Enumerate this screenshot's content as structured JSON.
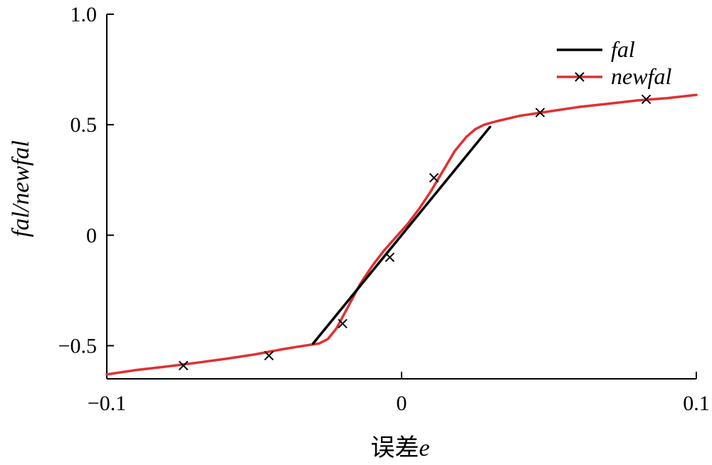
{
  "chart_data": {
    "type": "line",
    "xlabel": "误差",
    "xlabel_var": "e",
    "ylabel": "fal/newfal",
    "xlim": [
      -0.1,
      0.1
    ],
    "ylim": [
      -0.65,
      1.0
    ],
    "x_ticks": [
      -0.1,
      0,
      0.1
    ],
    "x_tick_labels": [
      "−0.1",
      "0",
      "0.1"
    ],
    "y_ticks": [
      -0.5,
      0,
      0.5,
      1.0
    ],
    "y_tick_labels": [
      "−0.5",
      "0",
      "0.5",
      "1.0"
    ],
    "grid": false,
    "legend_position": "top-right",
    "series": [
      {
        "name": "fal",
        "color": "#000000",
        "marker": "none",
        "x": [
          -0.03,
          0.03
        ],
        "y": [
          -0.49,
          0.49
        ]
      },
      {
        "name": "newfal",
        "color": "#e03030",
        "marker": "x",
        "x": [
          -0.1,
          -0.09,
          -0.08,
          -0.07,
          -0.06,
          -0.05,
          -0.04,
          -0.032,
          -0.028,
          -0.025,
          -0.022,
          -0.018,
          -0.014,
          -0.01,
          -0.006,
          -0.002,
          0.002,
          0.006,
          0.01,
          0.014,
          0.018,
          0.022,
          0.025,
          0.028,
          0.032,
          0.04,
          0.05,
          0.06,
          0.07,
          0.08,
          0.09,
          0.1
        ],
        "y": [
          -0.63,
          -0.61,
          -0.595,
          -0.578,
          -0.56,
          -0.54,
          -0.515,
          -0.498,
          -0.49,
          -0.47,
          -0.42,
          -0.32,
          -0.22,
          -0.14,
          -0.07,
          -0.01,
          0.05,
          0.12,
          0.2,
          0.29,
          0.38,
          0.445,
          0.48,
          0.5,
          0.515,
          0.54,
          0.56,
          0.58,
          0.595,
          0.61,
          0.62,
          0.635
        ],
        "marker_x": [
          -0.074,
          -0.045,
          -0.02,
          -0.004,
          0.011,
          0.047,
          0.083
        ],
        "marker_y": [
          -0.59,
          -0.545,
          -0.4,
          -0.1,
          0.26,
          0.555,
          0.615
        ]
      }
    ]
  }
}
